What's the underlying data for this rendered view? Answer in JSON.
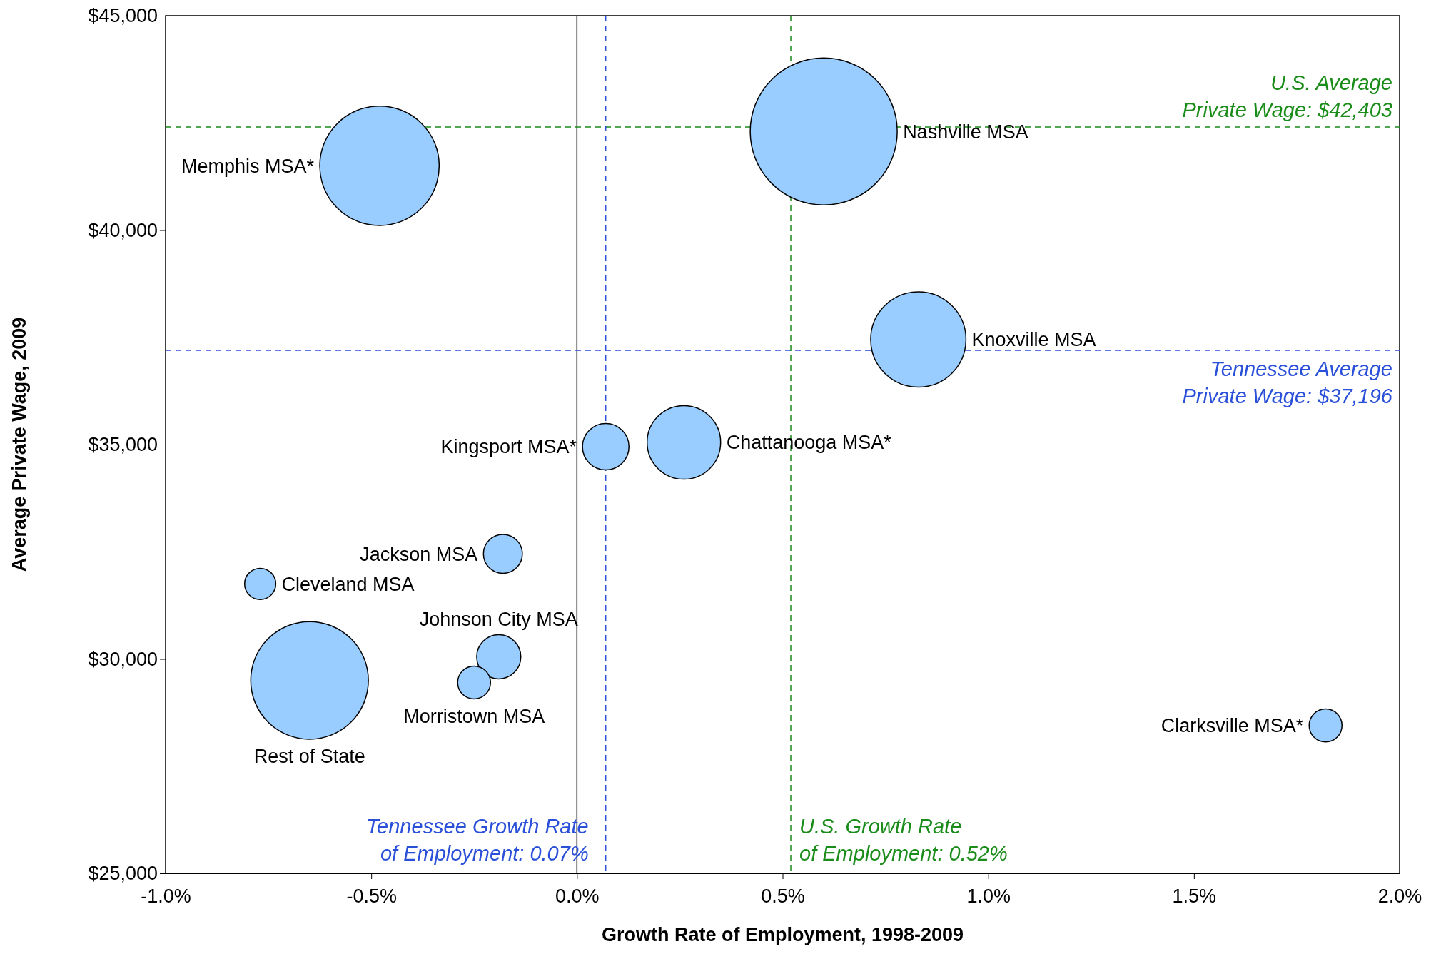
{
  "chart_data": {
    "type": "bubble",
    "xlabel": "Growth Rate of Employment, 1998-2009",
    "ylabel": "Average Private Wage, 2009",
    "xlim": [
      -1.0,
      2.0
    ],
    "xticks": [
      {
        "value": -1.0,
        "label": "-1.0%"
      },
      {
        "value": -0.5,
        "label": "-0.5%"
      },
      {
        "value": 0.0,
        "label": "0.0%"
      },
      {
        "value": 0.5,
        "label": "0.5%"
      },
      {
        "value": 1.0,
        "label": "1.0%"
      },
      {
        "value": 1.5,
        "label": "1.5%"
      },
      {
        "value": 2.0,
        "label": "2.0%"
      }
    ],
    "ylim": [
      25000,
      45000
    ],
    "yticks": [
      {
        "value": 25000,
        "label": "$25,000"
      },
      {
        "value": 30000,
        "label": "$30,000"
      },
      {
        "value": 35000,
        "label": "$35,000"
      },
      {
        "value": 40000,
        "label": "$40,000"
      },
      {
        "value": 45000,
        "label": "$45,000"
      }
    ],
    "grid": false,
    "series": [
      {
        "name": "Memphis MSA*",
        "color": "#99ccff",
        "x": [
          -0.48
        ],
        "values": [
          41500
        ],
        "sizes": [
          0.66
        ]
      },
      {
        "name": "Nashville MSA",
        "color": "#99ccff",
        "x": [
          0.6
        ],
        "values": [
          42300
        ],
        "sizes": [
          1
        ]
      },
      {
        "name": "Knoxville MSA",
        "color": "#99ccff",
        "x": [
          0.83
        ],
        "values": [
          37450
        ],
        "sizes": [
          0.42
        ]
      },
      {
        "name": "Kingsport MSA*",
        "color": "#99ccff",
        "x": [
          0.07
        ],
        "values": [
          34950
        ],
        "sizes": [
          0.1
        ]
      },
      {
        "name": "Chattanooga MSA*",
        "color": "#99ccff",
        "x": [
          0.26
        ],
        "values": [
          35050
        ],
        "sizes": [
          0.25
        ]
      },
      {
        "name": "Jackson MSA",
        "color": "#99ccff",
        "x": [
          -0.18
        ],
        "values": [
          32450
        ],
        "sizes": [
          0.07
        ]
      },
      {
        "name": "Cleveland MSA",
        "color": "#99ccff",
        "x": [
          -0.77
        ],
        "values": [
          31750
        ],
        "sizes": [
          0.045
        ]
      },
      {
        "name": "Johnson City MSA",
        "color": "#99ccff",
        "x": [
          -0.19
        ],
        "values": [
          30050
        ],
        "sizes": [
          0.09
        ]
      },
      {
        "name": "Morristown MSA",
        "color": "#99ccff",
        "x": [
          -0.25
        ],
        "values": [
          29450
        ],
        "sizes": [
          0.05
        ]
      },
      {
        "name": "Rest of State",
        "color": "#99ccff",
        "x": [
          -0.65
        ],
        "values": [
          29500
        ],
        "sizes": [
          0.64
        ]
      },
      {
        "name": "Clarksville MSA*",
        "color": "#99ccff",
        "x": [
          1.82
        ],
        "values": [
          28450
        ],
        "sizes": [
          0.05
        ]
      }
    ],
    "ref_lines": [
      {
        "axis": "x",
        "value": 0,
        "color": "#000000",
        "line_style": "solid"
      },
      {
        "axis": "y",
        "value": 42403,
        "label": "U.S. Average\nPrivate Wage: $42,403",
        "color": "#1a8c1a",
        "line_style": "dashed"
      },
      {
        "axis": "y",
        "value": 37196,
        "label": "Tennessee Average\nPrivate Wage: $37,196",
        "color": "#2a4fd8",
        "line_style": "dashed"
      },
      {
        "axis": "x",
        "value": 0.07,
        "label": "Tennessee Growth Rate\nof Employment: 0.07%",
        "color": "#2a4fd8",
        "line_style": "dashed"
      },
      {
        "axis": "x",
        "value": 0.52,
        "label": "U.S. Growth Rate\nof  Employment: 0.52%",
        "color": "#1a8c1a",
        "line_style": "dashed"
      }
    ]
  }
}
